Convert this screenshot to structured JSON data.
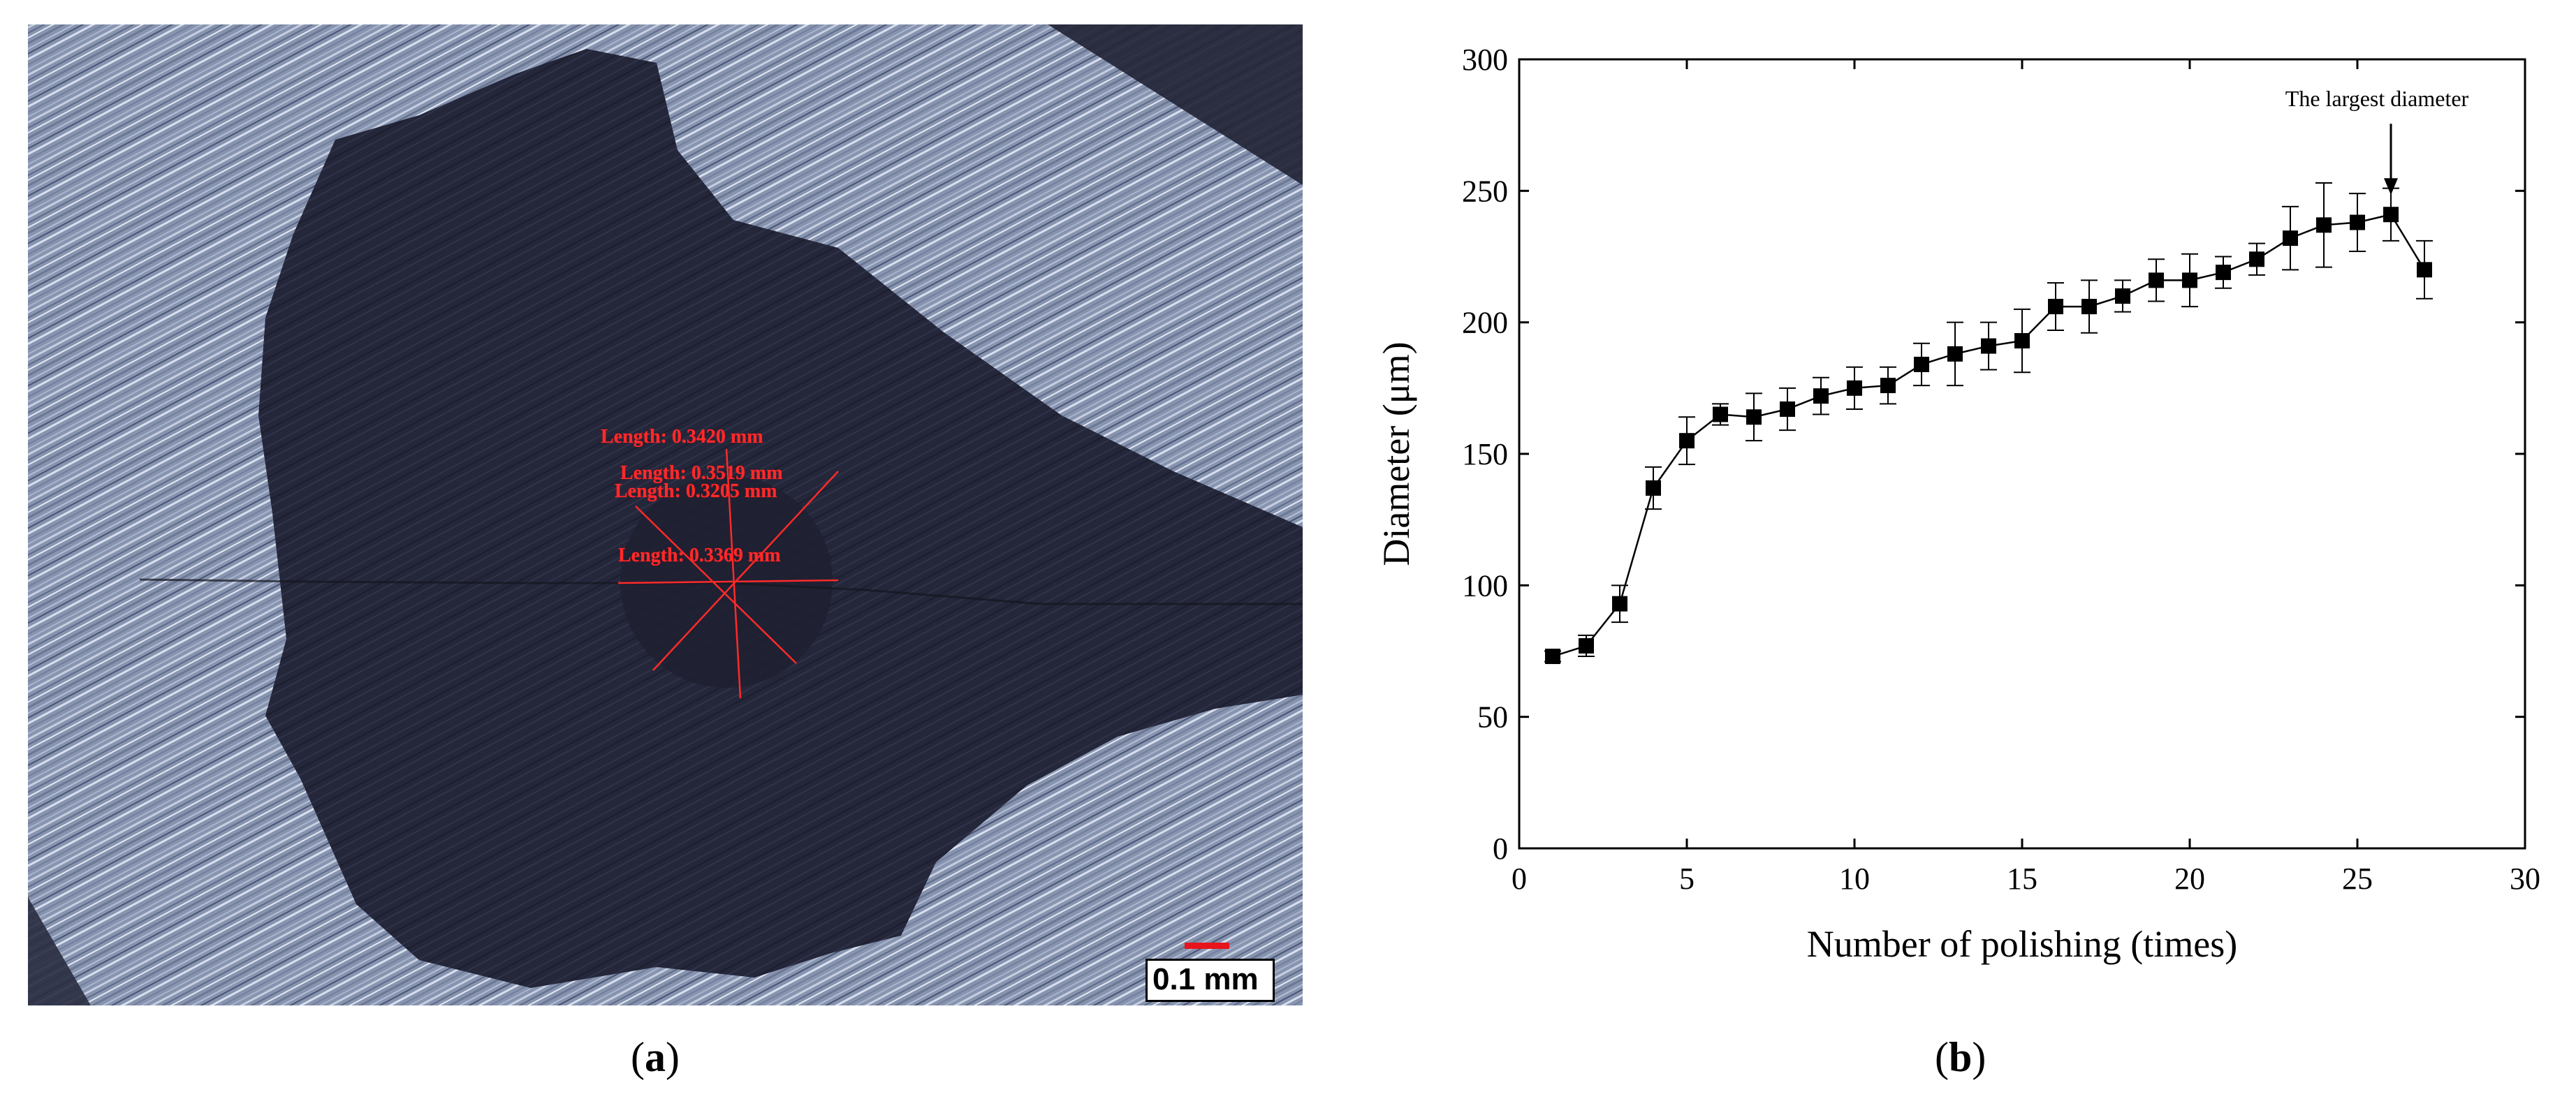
{
  "panel_a": {
    "label_open": "(",
    "label_letter": "a",
    "label_close": ")",
    "scale_text": "0.1 mm",
    "measurements": [
      "Length: 0.3420 mm",
      "Length: 0.3519 mm",
      "Length: 0.3205 mm",
      "Length: 0.3369 mm"
    ],
    "colors": {
      "measurement": "#ff2a2a",
      "scale_bar": "#e8141b",
      "background": "#7d8aa6",
      "dark_region": "#23253a"
    }
  },
  "panel_b": {
    "label_open": "(",
    "label_letter": "b",
    "label_close": ")"
  },
  "chart_data": {
    "type": "scatter",
    "xlabel": "Number of polishing (times)",
    "ylabel": "Diameter (μm)",
    "xlim": [
      0,
      30
    ],
    "ylim": [
      0,
      300
    ],
    "xticks": [
      0,
      5,
      10,
      15,
      20,
      25,
      30
    ],
    "yticks": [
      0,
      50,
      100,
      150,
      200,
      250,
      300
    ],
    "annotation": {
      "text": "The largest diameter",
      "x": 26,
      "y": 241
    },
    "grid": false,
    "marker": "square",
    "line": "solid",
    "color": "#000000",
    "x": [
      1,
      2,
      3,
      4,
      5,
      6,
      7,
      8,
      9,
      10,
      11,
      12,
      13,
      14,
      15,
      16,
      17,
      18,
      19,
      20,
      21,
      22,
      23,
      24,
      25,
      26,
      27
    ],
    "y": [
      73,
      77,
      93,
      137,
      155,
      165,
      164,
      167,
      172,
      175,
      176,
      184,
      188,
      191,
      193,
      206,
      206,
      210,
      216,
      216,
      219,
      224,
      232,
      237,
      238,
      241,
      220
    ],
    "err": [
      2,
      4,
      7,
      8,
      9,
      4,
      9,
      8,
      7,
      8,
      7,
      8,
      12,
      9,
      12,
      9,
      10,
      6,
      8,
      10,
      6,
      6,
      12,
      16,
      11,
      10,
      11
    ]
  }
}
